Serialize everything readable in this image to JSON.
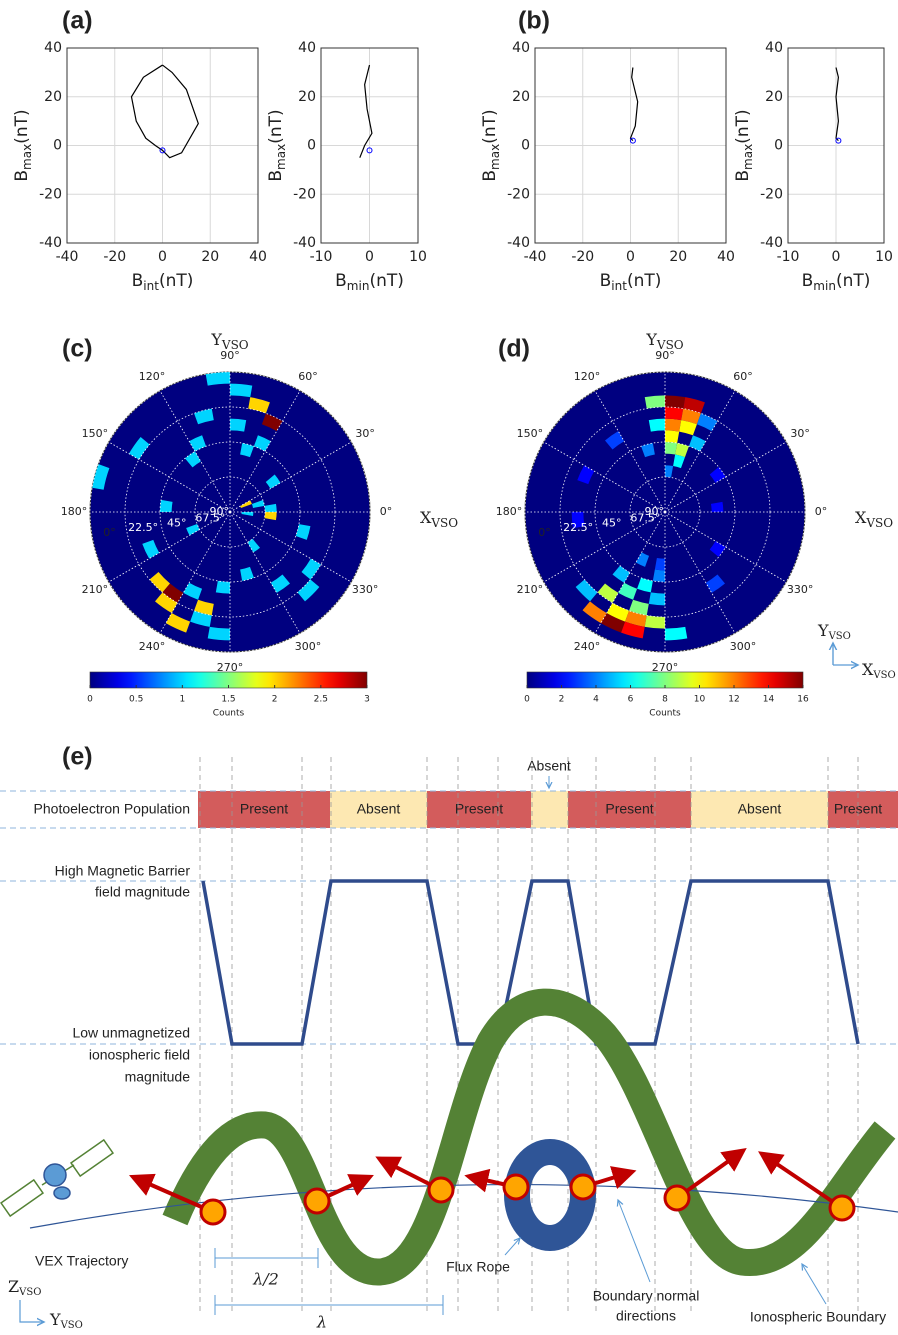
{
  "chart_data": [
    {
      "type": "line",
      "panel": "(a)",
      "x_label": [
        "B",
        "int",
        "(nT)"
      ],
      "y_label": [
        "B",
        "max",
        "(nT)"
      ],
      "xlim": [
        -40,
        40
      ],
      "xticks": [
        -40,
        -20,
        0,
        20,
        40
      ],
      "ylim": [
        -40,
        40
      ],
      "yticks": [
        -40,
        -20,
        0,
        20,
        40
      ],
      "grid": true,
      "series": [
        {
          "color": "#000000",
          "x": [
            0,
            -8,
            -13,
            -11,
            -7,
            -3,
            0,
            3,
            8,
            15,
            10,
            4,
            0
          ],
          "values": [
            33,
            28,
            20,
            10,
            3,
            0,
            -2,
            -5,
            -3,
            9,
            23,
            30,
            33
          ]
        },
        {
          "color": "#0000ff",
          "marker": "circle",
          "x": [
            0
          ],
          "values": [
            -2
          ]
        }
      ]
    },
    {
      "type": "line",
      "x_label": [
        "B",
        "min",
        "(nT)"
      ],
      "y_label": [
        "B",
        "max",
        "(nT)"
      ],
      "xlim": [
        -10,
        10
      ],
      "xticks": [
        -10,
        0,
        10
      ],
      "ylim": [
        -40,
        40
      ],
      "yticks": [
        -40,
        -20,
        0,
        20,
        40
      ],
      "grid": true,
      "series": [
        {
          "color": "#000000",
          "x": [
            0,
            -1,
            -0.5,
            0.5,
            -1,
            -2
          ],
          "values": [
            33,
            25,
            15,
            5,
            0,
            -5
          ]
        },
        {
          "color": "#0000ff",
          "marker": "circle",
          "x": [
            0
          ],
          "values": [
            -2
          ]
        }
      ]
    },
    {
      "type": "line",
      "panel": "(b)",
      "x_label": [
        "B",
        "int",
        "(nT)"
      ],
      "y_label": [
        "B",
        "max",
        "(nT)"
      ],
      "xlim": [
        -40,
        40
      ],
      "xticks": [
        -40,
        -20,
        0,
        20,
        40
      ],
      "ylim": [
        -40,
        40
      ],
      "yticks": [
        -40,
        -20,
        0,
        20,
        40
      ],
      "grid": true,
      "series": [
        {
          "color": "#000000",
          "x": [
            1,
            0.5,
            3,
            2,
            0,
            1
          ],
          "values": [
            32,
            28,
            18,
            8,
            3,
            2
          ]
        },
        {
          "color": "#0000ff",
          "marker": "circle",
          "x": [
            1
          ],
          "values": [
            2
          ]
        }
      ]
    },
    {
      "type": "line",
      "x_label": [
        "B",
        "min",
        "(nT)"
      ],
      "y_label": [
        "B",
        "max",
        "(nT)"
      ],
      "xlim": [
        -10,
        10
      ],
      "xticks": [
        -10,
        0,
        10
      ],
      "ylim": [
        -40,
        40
      ],
      "yticks": [
        -40,
        -20,
        0,
        20,
        40
      ],
      "grid": true,
      "series": [
        {
          "color": "#000000",
          "x": [
            0,
            0.5,
            0,
            0.5,
            0,
            0.5
          ],
          "values": [
            32,
            28,
            20,
            10,
            3,
            2
          ]
        },
        {
          "color": "#0000ff",
          "marker": "circle",
          "x": [
            0.5
          ],
          "values": [
            2
          ]
        }
      ]
    },
    {
      "type": "polar-heatmap",
      "panel": "(c)",
      "title": [
        "Y",
        "VSO"
      ],
      "x_label": [
        "X",
        "VSO"
      ],
      "thetaticks": [
        {
          "value": 0,
          "label": "0°"
        },
        {
          "value": 30,
          "label": "30°"
        },
        {
          "value": 60,
          "label": "60°"
        },
        {
          "value": 90,
          "label": "90°"
        },
        {
          "value": 120,
          "label": "120°"
        },
        {
          "value": 150,
          "label": "150°"
        },
        {
          "value": 180,
          "label": "180°"
        },
        {
          "value": 210,
          "label": "210°"
        },
        {
          "value": 240,
          "label": "240°"
        },
        {
          "value": 270,
          "label": "270°"
        },
        {
          "value": 300,
          "label": "300°"
        },
        {
          "value": 330,
          "label": "330°"
        }
      ],
      "rlim": [
        90,
        0
      ],
      "rticks": [
        {
          "value": 90,
          "label": "90°"
        },
        {
          "value": 67.5,
          "label": "67.5°"
        },
        {
          "value": 45,
          "label": "45°"
        },
        {
          "value": 22.5,
          "label": "22.5°"
        },
        {
          "value": 0,
          "label": "0°"
        }
      ],
      "clim": [
        0,
        3
      ],
      "cticks": [
        0,
        0.5,
        1,
        1.5,
        2,
        2.5,
        3
      ],
      "colorbar_label": "Counts",
      "cells": {
        "azimuth": [
          80,
          70,
          60,
          80,
          90,
          100,
          110,
          70,
          60,
          120,
          140,
          160,
          170,
          200,
          250,
          230,
          220,
          230,
          240,
          250,
          260,
          240,
          260,
          280,
          300,
          310,
          320,
          340,
          350,
          10,
          20,
          350,
          30,
          0,
          200,
          300
        ],
        "elevation": [
          30,
          15,
          22.5,
          7.5,
          0,
          22.5,
          37.5,
          45,
          37.5,
          45,
          15,
          0,
          45,
          30,
          15,
          15,
          22.5,
          22.5,
          7.5,
          22.5,
          7.5,
          30,
          37.5,
          45,
          30,
          15,
          22.5,
          37.5,
          60,
          67.5,
          75,
          75,
          52.5,
          60,
          60,
          60
        ],
        "values": [
          1,
          2,
          3,
          1,
          1,
          1,
          1,
          1,
          1,
          1,
          1,
          1,
          1,
          1,
          1,
          2,
          2,
          3,
          2,
          2,
          1,
          1,
          1,
          1,
          1,
          1,
          1,
          1,
          2,
          1,
          2,
          1,
          1,
          1,
          1,
          1
        ]
      }
    },
    {
      "type": "polar-heatmap",
      "panel": "(d)",
      "title": [
        "Y",
        "VSO"
      ],
      "x_label": [
        "X",
        "VSO"
      ],
      "thetaticks": [
        {
          "value": 0,
          "label": "0°"
        },
        {
          "value": 30,
          "label": "30°"
        },
        {
          "value": 60,
          "label": "60°"
        },
        {
          "value": 90,
          "label": "90°"
        },
        {
          "value": 120,
          "label": "120°"
        },
        {
          "value": 150,
          "label": "150°"
        },
        {
          "value": 180,
          "label": "180°"
        },
        {
          "value": 210,
          "label": "210°"
        },
        {
          "value": 240,
          "label": "240°"
        },
        {
          "value": 270,
          "label": "270°"
        },
        {
          "value": 300,
          "label": "300°"
        },
        {
          "value": 330,
          "label": "330°"
        }
      ],
      "rlim": [
        90,
        0
      ],
      "rticks": [
        {
          "value": 90,
          "label": "90°"
        },
        {
          "value": 67.5,
          "label": "67.5°"
        },
        {
          "value": 45,
          "label": "45°"
        },
        {
          "value": 22.5,
          "label": "22.5°"
        },
        {
          "value": 0,
          "label": "0°"
        }
      ],
      "clim": [
        0,
        16
      ],
      "cticks": [
        0,
        2,
        4,
        6,
        8,
        10,
        12,
        14,
        16
      ],
      "colorbar_label": "Counts",
      "inset_axes": {
        "y": [
          "Y",
          "VSO"
        ],
        "x": [
          "X",
          "VSO"
        ]
      },
      "cells": {
        "azimuth": [
          80,
          80,
          80,
          80,
          80,
          80,
          70,
          70,
          70,
          90,
          90,
          70,
          70,
          60,
          100,
          60,
          240,
          240,
          250,
          250,
          230,
          240,
          250,
          260,
          260,
          230,
          260,
          270,
          220,
          230,
          250,
          260,
          240,
          120,
          150,
          300,
          320,
          30,
          180,
          0
        ],
        "elevation": [
          60,
          45,
          37.5,
          30,
          22.5,
          15,
          15,
          22.5,
          30,
          30,
          15,
          45,
          52.5,
          37.5,
          45,
          22.5,
          7.5,
          15,
          15,
          22.5,
          22.5,
          30,
          37.5,
          15,
          30,
          37.5,
          45,
          7.5,
          15,
          7.5,
          7.5,
          52.5,
          52.5,
          30,
          30,
          30,
          45,
          45,
          30,
          52.5
        ],
        "values": [
          4,
          8,
          10,
          12,
          14,
          16,
          15,
          12,
          10,
          6,
          8,
          9,
          6,
          5,
          4,
          4,
          16,
          10,
          12,
          8,
          9,
          7,
          6,
          9,
          5,
          5,
          4,
          6,
          5,
          12,
          14,
          3,
          4,
          3,
          2,
          3,
          2,
          2,
          2,
          2
        ]
      }
    }
  ],
  "diagram": {
    "panel": "(e)",
    "photoelectron_label": "Photoelectron Population",
    "states": [
      "Present",
      "Absent",
      "Present",
      null,
      "Present",
      "Absent",
      "Present"
    ],
    "state_colors": [
      "#d35c5c",
      "#fde8b2",
      "#d35c5c",
      "#fde8b2",
      "#d35c5c",
      "#fde8b2",
      "#d35c5c"
    ],
    "absent_note": "Absent",
    "high_label": [
      "High Magnetic Barrier",
      "field magnitude"
    ],
    "low_label": [
      "Low unmagnetized",
      "ionospheric field",
      "magnitude"
    ],
    "trajectory_label": "VEX Trajectory",
    "half_wavelength": "λ/2",
    "wavelength": "λ",
    "flux_rope_label": "Flux Rope",
    "normal_label": [
      "Boundary normal",
      "directions"
    ],
    "boundary_label": "Ionospheric Boundary",
    "axis_z": [
      "Z",
      "VSO"
    ],
    "axis_y": [
      "Y",
      "VSO"
    ]
  }
}
